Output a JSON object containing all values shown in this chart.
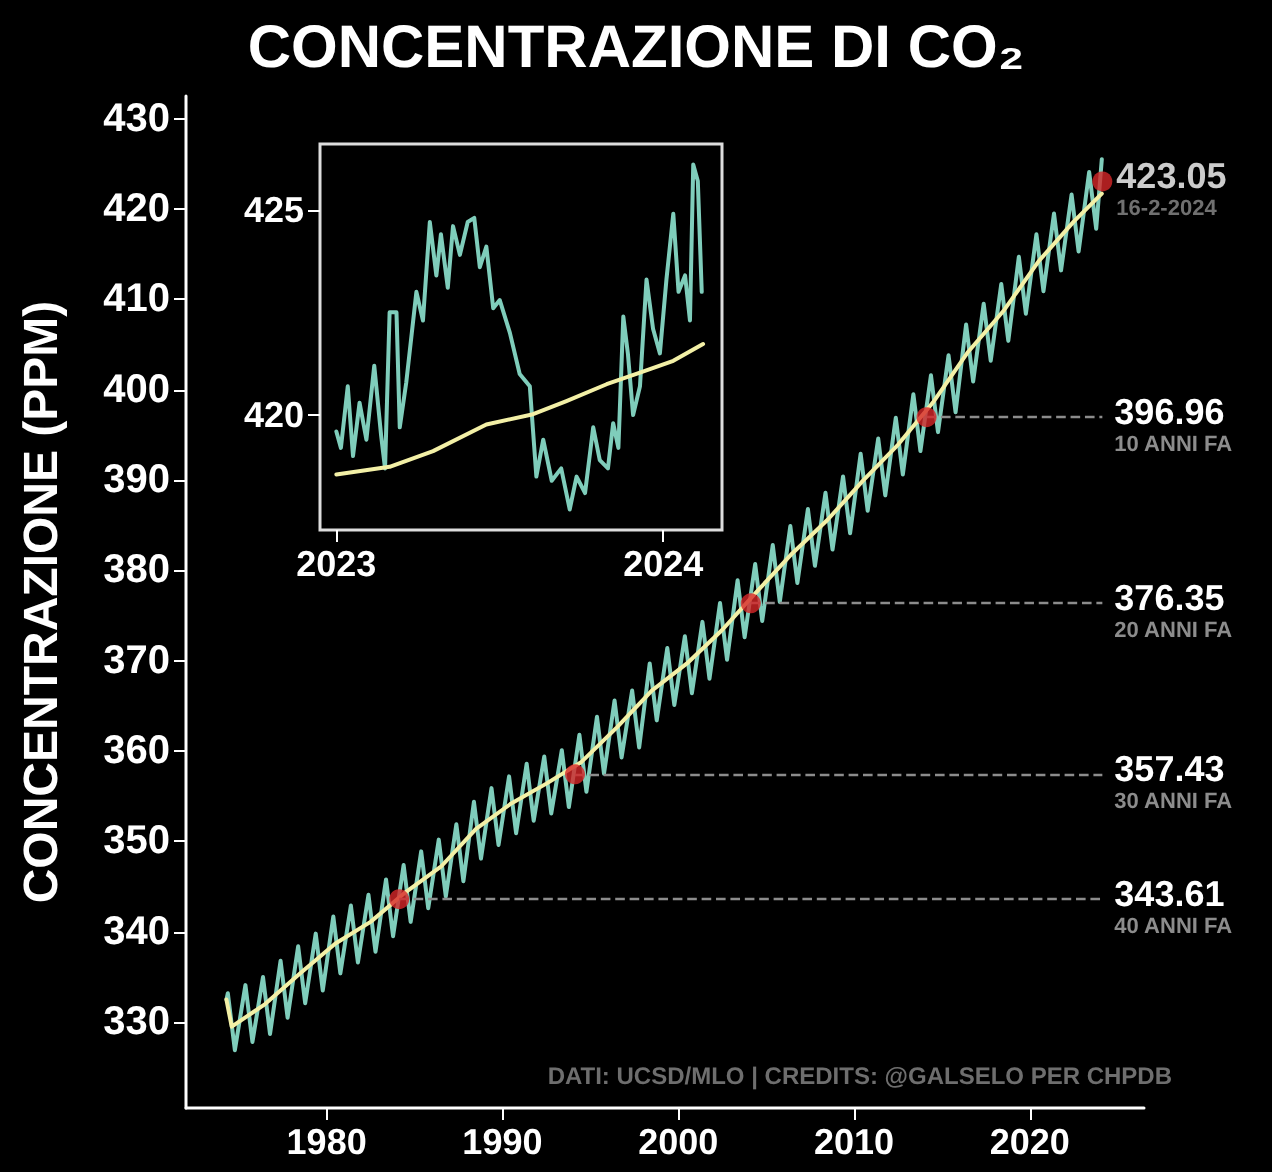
{
  "chart_data": [
    {
      "type": "line",
      "title": "CONCENTRAZIONE DI CO₂",
      "ylabel": "CONCENTRAZIONE (PPM)",
      "xlim": [
        1972,
        2026.5
      ],
      "xticks": [
        1980,
        1990,
        2000,
        2010,
        2020
      ],
      "ylim": [
        320.5,
        432.5
      ],
      "yticks": [
        330,
        340,
        350,
        360,
        370,
        380,
        390,
        400,
        410,
        420,
        430
      ],
      "series": [
        {
          "color": "#7fcdbb",
          "x": [
            1974.3,
            1974.38,
            1974.78,
            1975.38,
            1975.78,
            1976.38,
            1976.78,
            1977.38,
            1977.78,
            1978.38,
            1978.78,
            1979.38,
            1979.78,
            1980.38,
            1980.78,
            1981.38,
            1981.78,
            1982.38,
            1982.78,
            1983.38,
            1983.78,
            1984.38,
            1984.78,
            1985.38,
            1985.78,
            1986.38,
            1986.78,
            1987.38,
            1987.78,
            1988.38,
            1988.78,
            1989.38,
            1989.78,
            1990.38,
            1990.78,
            1991.38,
            1991.78,
            1992.38,
            1992.78,
            1993.38,
            1993.78,
            1994.38,
            1994.78,
            1995.38,
            1995.78,
            1996.38,
            1996.78,
            1997.38,
            1997.78,
            1998.38,
            1998.78,
            1999.38,
            1999.78,
            2000.38,
            2000.78,
            2001.38,
            2001.78,
            2002.38,
            2002.78,
            2003.38,
            2003.78,
            2004.38,
            2004.78,
            2005.38,
            2005.78,
            2006.38,
            2006.78,
            2007.38,
            2007.78,
            2008.38,
            2008.78,
            2009.38,
            2009.78,
            2010.38,
            2010.78,
            2011.38,
            2011.78,
            2012.38,
            2012.78,
            2013.38,
            2013.78,
            2014.38,
            2014.78,
            2015.38,
            2015.78,
            2016.38,
            2016.78,
            2017.38,
            2017.78,
            2018.38,
            2018.78,
            2019.38,
            2019.78,
            2020.38,
            2020.78,
            2021.38,
            2021.78,
            2022.38,
            2022.78,
            2023.38,
            2023.78,
            2024.1
          ],
          "values": [
            332.5,
            333.2,
            326.9,
            334.1,
            327.8,
            335.0,
            328.7,
            336.8,
            330.5,
            338.4,
            332.1,
            339.8,
            333.5,
            341.7,
            335.4,
            342.9,
            336.6,
            344.1,
            337.8,
            345.8,
            339.5,
            347.4,
            341.1,
            348.9,
            342.6,
            350.2,
            343.9,
            351.9,
            345.6,
            354.4,
            348.1,
            355.9,
            349.6,
            357.2,
            350.9,
            358.6,
            352.3,
            359.4,
            353.1,
            360.1,
            353.8,
            361.8,
            355.5,
            363.8,
            357.5,
            365.6,
            359.3,
            366.7,
            360.4,
            369.7,
            363.4,
            371.4,
            365.1,
            372.7,
            366.4,
            374.3,
            368.0,
            376.4,
            370.1,
            378.9,
            372.6,
            380.7,
            374.4,
            382.8,
            376.5,
            384.9,
            378.6,
            386.8,
            380.5,
            388.6,
            382.3,
            390.4,
            384.1,
            392.9,
            386.6,
            394.6,
            388.3,
            396.9,
            390.6,
            399.5,
            393.2,
            401.6,
            395.3,
            403.8,
            397.5,
            407.2,
            400.9,
            409.5,
            403.2,
            411.7,
            405.4,
            414.7,
            408.4,
            417.2,
            410.9,
            419.5,
            413.2,
            421.6,
            415.3,
            424.1,
            417.8,
            425.5
          ]
        },
        {
          "color": "#f3f0a6",
          "x": [
            1974.3,
            1974.6,
            1976.5,
            1978.5,
            1980.5,
            1982.5,
            1984.5,
            1986.5,
            1988.5,
            1990.5,
            1992.5,
            1994.5,
            1996.5,
            1998.5,
            2000.5,
            2002.5,
            2004.5,
            2006.5,
            2008.5,
            2010.5,
            2012.5,
            2014.5,
            2016.5,
            2018.5,
            2020.5,
            2022.5,
            2024.1
          ],
          "values": [
            332.5,
            329.5,
            332.0,
            335.4,
            338.7,
            341.1,
            344.4,
            347.2,
            351.4,
            354.2,
            356.4,
            358.8,
            362.6,
            366.7,
            369.7,
            373.4,
            377.7,
            381.9,
            385.6,
            389.9,
            393.9,
            398.6,
            404.2,
            408.7,
            414.2,
            418.6,
            421.7
          ]
        },
        {
          "type": "scatter",
          "color": "#d62728",
          "x": [
            1984.13,
            1994.13,
            2004.13,
            2014.13,
            2024.13
          ],
          "values": [
            343.61,
            357.43,
            376.35,
            396.96,
            423.05
          ]
        }
      ],
      "ref_lines": [
        {
          "axis": "y",
          "value": 396.96,
          "label": "396.96\n10 ANNI FA",
          "color": "#8c8c8c",
          "line_style": "dashed"
        },
        {
          "axis": "y",
          "value": 376.35,
          "label": "376.35\n20 ANNI FA",
          "color": "#8c8c8c",
          "line_style": "dashed"
        },
        {
          "axis": "y",
          "value": 357.43,
          "label": "357.43\n30 ANNI FA",
          "color": "#8c8c8c",
          "line_style": "dashed"
        },
        {
          "axis": "y",
          "value": 343.61,
          "label": "343.61\n40 ANNI FA",
          "color": "#8c8c8c",
          "line_style": "dashed"
        }
      ],
      "annotations": [
        {
          "text": "423.05\n16-2-2024",
          "x": 2024.13,
          "y": 423.05
        },
        "DATI: UCSD/MLO | CREDITS: @GALSELO PER CHPDB"
      ]
    },
    {
      "type": "line",
      "xlim": [
        2022.95,
        2024.18
      ],
      "xticks": [
        2023,
        2024
      ],
      "ylim": [
        417.2,
        426.6
      ],
      "yticks": [
        420,
        425
      ],
      "series": [
        {
          "color": "#7fcdbb",
          "x": [
            2023.0,
            2023.014,
            2023.035,
            2023.051,
            2023.071,
            2023.092,
            2023.116,
            2023.137,
            2023.149,
            2023.163,
            2023.184,
            2023.194,
            2023.214,
            2023.245,
            2023.265,
            2023.286,
            2023.306,
            2023.32,
            2023.341,
            2023.357,
            2023.378,
            2023.402,
            2023.422,
            2023.439,
            2023.459,
            2023.48,
            2023.5,
            2023.531,
            2023.561,
            2023.592,
            2023.612,
            2023.633,
            2023.659,
            2023.688,
            2023.714,
            2023.735,
            2023.761,
            2023.786,
            2023.806,
            2023.831,
            2023.847,
            2023.863,
            2023.878,
            2023.892,
            2023.908,
            2023.929,
            2023.949,
            2023.969,
            2023.99,
            2024.01,
            2024.031,
            2024.047,
            2024.067,
            2024.082,
            2024.092,
            2024.106,
            2024.118
          ],
          "values": [
            419.6,
            419.2,
            420.7,
            419.0,
            420.3,
            419.4,
            421.2,
            419.5,
            418.7,
            422.5,
            422.5,
            419.7,
            420.8,
            423.0,
            422.3,
            424.7,
            423.4,
            424.4,
            423.1,
            424.6,
            423.9,
            424.7,
            424.8,
            423.6,
            424.1,
            422.6,
            422.8,
            422.0,
            421.0,
            420.7,
            418.5,
            419.4,
            418.4,
            418.7,
            417.7,
            418.5,
            418.1,
            419.7,
            418.9,
            418.7,
            419.8,
            419.2,
            422.4,
            421.5,
            420.0,
            420.7,
            423.3,
            422.1,
            421.5,
            423.3,
            424.9,
            423.0,
            423.4,
            422.3,
            426.1,
            425.7,
            423.0
          ]
        },
        {
          "color": "#f3f0a6",
          "x": [
            2023.0,
            2023.163,
            2023.296,
            2023.459,
            2023.602,
            2023.704,
            2023.827,
            2023.929,
            2024.031,
            2024.122
          ],
          "values": [
            418.55,
            418.74,
            419.12,
            419.77,
            420.02,
            420.34,
            420.75,
            421.03,
            421.32,
            421.73
          ]
        }
      ]
    }
  ]
}
